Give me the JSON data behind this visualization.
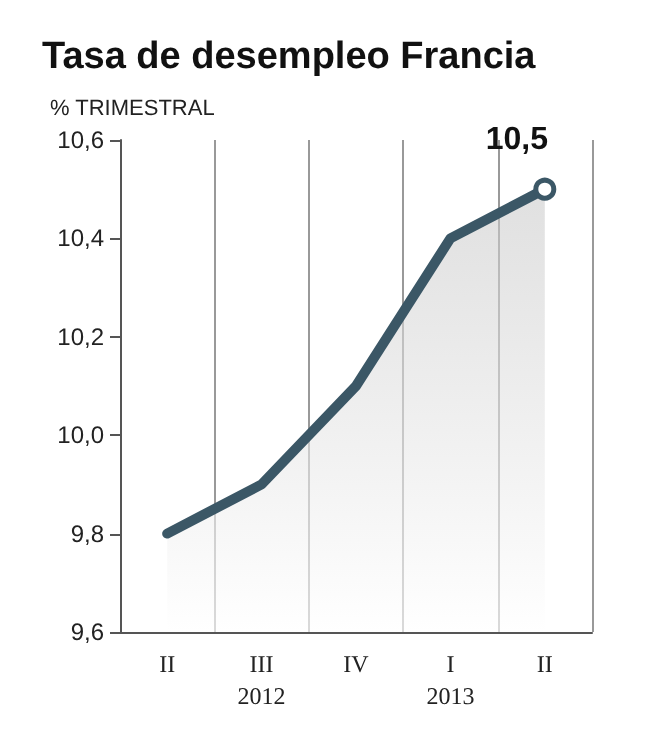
{
  "chart_data": {
    "type": "area",
    "title": "Tasa de desempleo Francia",
    "ylabel": "% TRIMESTRAL",
    "categories": [
      "II",
      "III\n2012",
      "IV",
      "I\n2013",
      "II"
    ],
    "series": [
      {
        "color": "#3b5766",
        "values": [
          9.8,
          9.9,
          10.1,
          10.4,
          10.5
        ],
        "value_labels": [
          null,
          null,
          null,
          null,
          "10,5"
        ]
      }
    ],
    "ylim": [
      9.6,
      10.6
    ],
    "yticks": [
      {
        "value": 9.6,
        "label": "9,6"
      },
      {
        "value": 9.8,
        "label": "9,8"
      },
      {
        "value": 10.0,
        "label": "10,0"
      },
      {
        "value": 10.2,
        "label": "10,2"
      },
      {
        "value": 10.4,
        "label": "10,4"
      },
      {
        "value": 10.6,
        "label": "10,6"
      }
    ],
    "grid": "x",
    "marker": "none",
    "line_style": "solid"
  }
}
